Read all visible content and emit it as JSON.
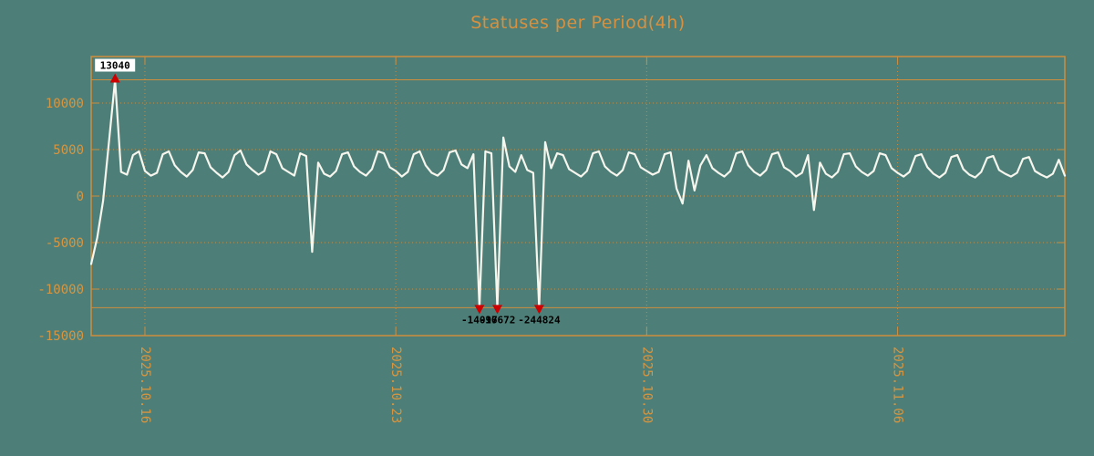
{
  "colors": {
    "background": "#4d7f78",
    "axis": "#cf8d3e",
    "tick_text": "#d8953f",
    "series_line": "#f6f6ee",
    "marker": "#cc0000",
    "annotation_text": "#000000",
    "annotation_bg": "#ffffff"
  },
  "chart_data": {
    "type": "line",
    "title": "Statuses per Period(4h)",
    "x_interval_hours": 4,
    "ylim": [
      -15000,
      15000
    ],
    "yticks": [
      -15000,
      -10000,
      -5000,
      0,
      5000,
      10000
    ],
    "xticks": [
      {
        "label": "2025.10.16",
        "index": 9
      },
      {
        "label": "2025.10.23",
        "index": 51
      },
      {
        "label": "2025.10.30",
        "index": 93
      },
      {
        "label": "2025.11.06",
        "index": 135
      }
    ],
    "clip_lines": {
      "upper": 12500,
      "lower": -12000
    },
    "annotations": [
      {
        "kind": "max",
        "marker": "up",
        "index": 4,
        "value": 13040,
        "label": "13040"
      },
      {
        "kind": "min",
        "marker": "down",
        "index": 65,
        "value": -14097,
        "label": "-14097"
      },
      {
        "kind": "min",
        "marker": "down",
        "index": 68,
        "value": -16672,
        "label": "-16672"
      },
      {
        "kind": "min",
        "marker": "down",
        "index": 75,
        "value": -244824,
        "label": "-244824"
      }
    ],
    "values": [
      -7300,
      -4500,
      -500,
      6000,
      13040,
      2600,
      2300,
      4400,
      4800,
      2700,
      2200,
      2500,
      4500,
      4800,
      3300,
      2600,
      2100,
      2800,
      4700,
      4600,
      3100,
      2500,
      2000,
      2600,
      4400,
      4900,
      3400,
      2800,
      2300,
      2700,
      4800,
      4500,
      3000,
      2600,
      2200,
      4600,
      4300,
      -6000,
      3600,
      2400,
      2100,
      2700,
      4500,
      4700,
      3200,
      2600,
      2200,
      2900,
      4800,
      4600,
      3100,
      2700,
      2100,
      2600,
      4500,
      4800,
      3300,
      2500,
      2200,
      2800,
      4700,
      4900,
      3400,
      3000,
      4500,
      -14097,
      4800,
      4600,
      -16672,
      6300,
      3200,
      2600,
      4400,
      2800,
      2500,
      -244824,
      5800,
      3000,
      4600,
      4400,
      2900,
      2500,
      2100,
      2700,
      4600,
      4800,
      3200,
      2600,
      2200,
      2800,
      4700,
      4500,
      3100,
      2700,
      2300,
      2600,
      4500,
      4700,
      800,
      -800,
      3800,
      600,
      3300,
      4400,
      3000,
      2500,
      2100,
      2700,
      4600,
      4800,
      3300,
      2600,
      2200,
      2800,
      4500,
      4700,
      3100,
      2700,
      2100,
      2500,
      4400,
      -1500,
      3600,
      2400,
      2000,
      2600,
      4500,
      4600,
      3200,
      2600,
      2200,
      2700,
      4600,
      4400,
      3000,
      2500,
      2100,
      2600,
      4300,
      4500,
      3100,
      2400,
      2000,
      2500,
      4200,
      4400,
      2900,
      2300,
      2000,
      2600,
      4100,
      4300,
      2800,
      2400,
      2100,
      2500,
      4000,
      4200,
      2700,
      2300,
      2000,
      2400,
      3900,
      2200
    ]
  }
}
